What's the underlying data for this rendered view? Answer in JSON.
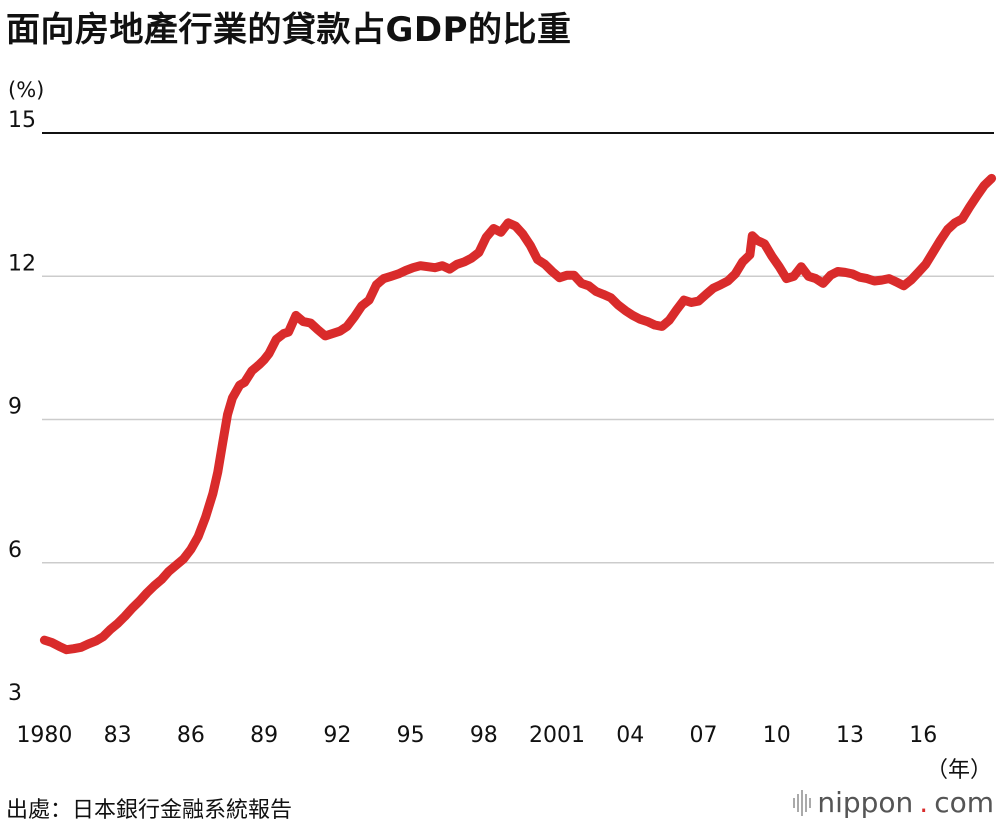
{
  "header": {
    "title": "面向房地產行業的貸款占GDP的比重",
    "unit": "(%)"
  },
  "footer": {
    "source": "出處：日本銀行金融系統報告",
    "brand_main": "nippon",
    "brand_dot": ".",
    "brand_tld": "com",
    "x_unit": "（年）"
  },
  "colors": {
    "line": "#d92b2b",
    "grid": "#cccccc",
    "top_grid": "#111111"
  },
  "chart_data": {
    "type": "line",
    "title": "面向房地產行業的貸款占GDP的比重",
    "ylabel": "(%)",
    "xlabel": "（年）",
    "ylim": [
      3,
      15
    ],
    "xlim": [
      1979.9,
      2018.9
    ],
    "yticks": [
      3,
      6,
      9,
      12,
      15
    ],
    "xticks": [
      1980,
      1983,
      1986,
      1989,
      1992,
      1995,
      1998,
      2001,
      2004,
      2007,
      2010,
      2013,
      2016
    ],
    "xtick_labels": [
      "1980",
      "83",
      "86",
      "89",
      "92",
      "95",
      "98",
      "2001",
      "04",
      "07",
      "10",
      "13",
      "16"
    ],
    "grid": true,
    "legend": "none",
    "series": [
      {
        "x": [
          1980.0,
          1980.3,
          1980.6,
          1980.9,
          1981.2,
          1981.5,
          1981.8,
          1982.1,
          1982.4,
          1982.7,
          1983.0,
          1983.3,
          1983.6,
          1983.9,
          1984.2,
          1984.5,
          1984.8,
          1985.1,
          1985.4,
          1985.7,
          1986.0,
          1986.3,
          1986.6,
          1986.9,
          1987.1,
          1987.3,
          1987.5,
          1987.7,
          1988.0,
          1988.2,
          1988.5,
          1988.8,
          1989.0,
          1989.2,
          1989.5,
          1989.8,
          1990.0,
          1990.3,
          1990.6,
          1990.9,
          1991.2,
          1991.5,
          1991.8,
          1992.1,
          1992.4,
          1992.7,
          1993.0,
          1993.3,
          1993.6,
          1993.9,
          1994.2,
          1994.5,
          1994.8,
          1995.1,
          1995.4,
          1995.7,
          1996.0,
          1996.3,
          1996.6,
          1996.9,
          1997.2,
          1997.5,
          1997.8,
          1998.1,
          1998.4,
          1998.7,
          1999.0,
          1999.3,
          1999.6,
          1999.9,
          2000.2,
          2000.5,
          2000.8,
          2001.1,
          2001.4,
          2001.7,
          2002.0,
          2002.3,
          2002.6,
          2002.9,
          2003.2,
          2003.5,
          2003.8,
          2004.1,
          2004.4,
          2004.7,
          2005.0,
          2005.3,
          2005.6,
          2005.9,
          2006.2,
          2006.5,
          2006.8,
          2007.1,
          2007.4,
          2007.7,
          2008.0,
          2008.3,
          2008.6,
          2008.9,
          2009.0,
          2009.2,
          2009.5,
          2009.8,
          2010.1,
          2010.4,
          2010.7,
          2011.0,
          2011.3,
          2011.6,
          2011.9,
          2012.2,
          2012.5,
          2012.8,
          2013.1,
          2013.4,
          2013.7,
          2014.0,
          2014.3,
          2014.6,
          2014.9,
          2015.2,
          2015.5,
          2015.8,
          2016.1,
          2016.4,
          2016.7,
          2017.0,
          2017.3,
          2017.6,
          2017.9,
          2018.2,
          2018.5,
          2018.8
        ],
        "y": [
          4.38,
          4.33,
          4.25,
          4.18,
          4.2,
          4.23,
          4.3,
          4.36,
          4.45,
          4.6,
          4.73,
          4.88,
          5.05,
          5.2,
          5.37,
          5.52,
          5.65,
          5.82,
          5.95,
          6.08,
          6.28,
          6.55,
          6.95,
          7.45,
          7.9,
          8.5,
          9.1,
          9.45,
          9.72,
          9.78,
          10.02,
          10.15,
          10.25,
          10.38,
          10.68,
          10.8,
          10.83,
          11.18,
          11.05,
          11.02,
          10.88,
          10.75,
          10.8,
          10.85,
          10.95,
          11.15,
          11.38,
          11.5,
          11.82,
          11.95,
          12.0,
          12.05,
          12.12,
          12.18,
          12.22,
          12.2,
          12.18,
          12.22,
          12.15,
          12.25,
          12.3,
          12.38,
          12.5,
          12.82,
          13.0,
          12.92,
          13.12,
          13.05,
          12.88,
          12.65,
          12.35,
          12.25,
          12.1,
          11.97,
          12.02,
          12.02,
          11.85,
          11.8,
          11.68,
          11.62,
          11.55,
          11.4,
          11.28,
          11.18,
          11.1,
          11.05,
          10.98,
          10.95,
          11.08,
          11.3,
          11.5,
          11.45,
          11.48,
          11.62,
          11.75,
          11.82,
          11.9,
          12.05,
          12.3,
          12.45,
          12.85,
          12.75,
          12.68,
          12.42,
          12.2,
          11.95,
          12.0,
          12.2,
          12.0,
          11.95,
          11.85,
          12.02,
          12.1,
          12.08,
          12.05,
          11.98,
          11.95,
          11.9,
          11.92,
          11.95,
          11.88,
          11.8,
          11.92,
          12.08,
          12.25,
          12.5,
          12.75,
          12.98,
          13.12,
          13.2,
          13.45,
          13.68,
          13.9,
          14.05
        ]
      }
    ]
  }
}
